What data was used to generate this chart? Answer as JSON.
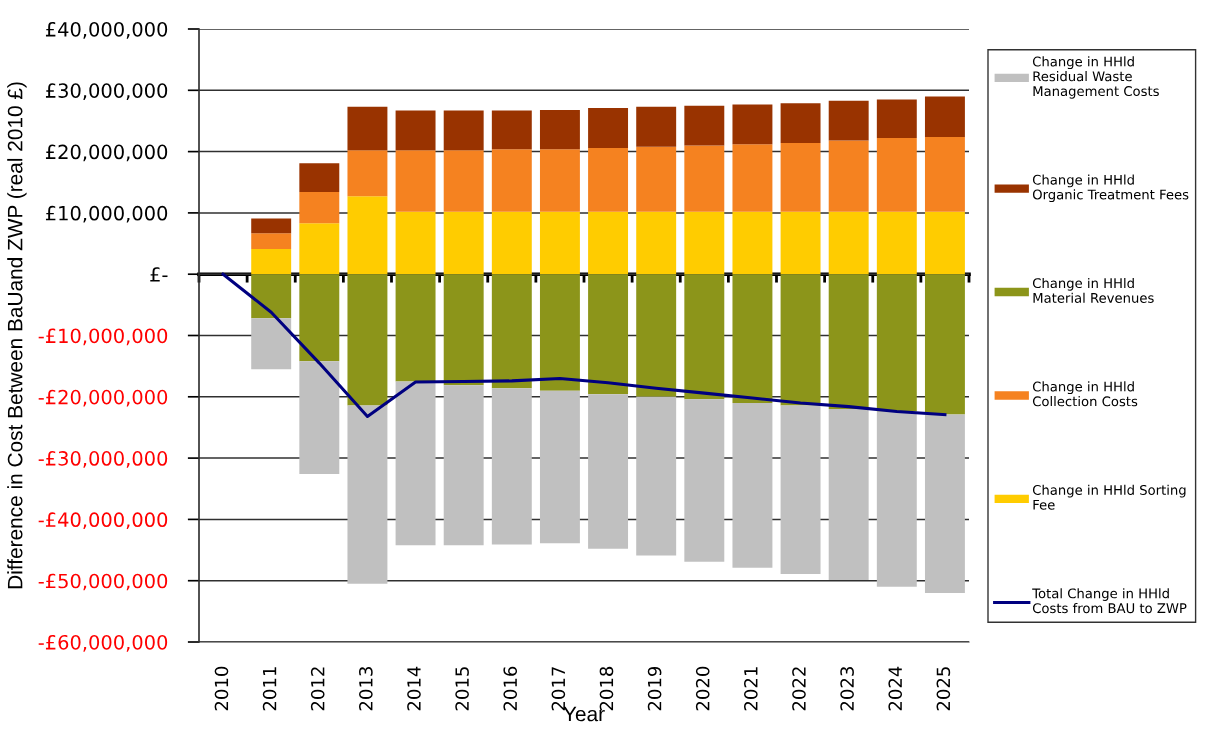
{
  "chart_data": {
    "type": "bar",
    "stacked": true,
    "xlabel": "Year",
    "ylabel": "Difference in Cost Between BaUand ZWP (real 2010 £)",
    "categories": [
      "2010",
      "2011",
      "2012",
      "2013",
      "2014",
      "2015",
      "2016",
      "2017",
      "2018",
      "2019",
      "2020",
      "2021",
      "2022",
      "2023",
      "2024",
      "2025"
    ],
    "series": [
      {
        "name": "Change in HHld Sorting Fee",
        "color": "#ffcc00",
        "values": [
          null,
          4100000,
          8300000,
          12700000,
          10200000,
          10200000,
          10200000,
          10200000,
          10200000,
          10200000,
          10200000,
          10200000,
          10200000,
          10200000,
          10200000,
          10200000
        ]
      },
      {
        "name": "Change in HHld Collection Costs",
        "color": "#f58220",
        "values": [
          null,
          2600000,
          5100000,
          7500000,
          10000000,
          10000000,
          10200000,
          10200000,
          10400000,
          10600000,
          10800000,
          11000000,
          11200000,
          11600000,
          12000000,
          12200000
        ]
      },
      {
        "name": "Change in HHld Material Revenues",
        "color": "#8c951a",
        "values": [
          null,
          -7200000,
          -14200000,
          -21400000,
          -17500000,
          -18100000,
          -18600000,
          -19000000,
          -19600000,
          -20000000,
          -20400000,
          -21000000,
          -21400000,
          -22000000,
          -22400000,
          -22900000
        ]
      },
      {
        "name": "Change in HHld Organic Treatment Fees",
        "color": "#993300",
        "values": [
          null,
          2400000,
          4700000,
          7100000,
          6500000,
          6500000,
          6300000,
          6400000,
          6500000,
          6500000,
          6500000,
          6500000,
          6500000,
          6500000,
          6300000,
          6600000
        ]
      },
      {
        "name": "Change in HHld Residual Waste Management Costs",
        "color": "#c0c0c0",
        "values": [
          null,
          -8300000,
          -18400000,
          -29100000,
          -26700000,
          -26100000,
          -25500000,
          -24900000,
          -25200000,
          -25900000,
          -26500000,
          -26900000,
          -27500000,
          -27900000,
          -28600000,
          -29100000
        ]
      },
      {
        "name": "Total Change in HHld Costs from BAU to ZWP",
        "type": "line",
        "color": "#000080",
        "values": [
          0,
          -6200000,
          -14500000,
          -23200000,
          -17600000,
          -17500000,
          -17400000,
          -17000000,
          -17700000,
          -18600000,
          -19400000,
          -20200000,
          -21000000,
          -21600000,
          -22400000,
          -22900000
        ]
      }
    ],
    "ylim": [
      -60000000,
      40000000
    ],
    "yticks": [
      {
        "value": -60000000,
        "label": "-£60,000,000"
      },
      {
        "value": -50000000,
        "label": "-£50,000,000"
      },
      {
        "value": -40000000,
        "label": "-£40,000,000"
      },
      {
        "value": -30000000,
        "label": "-£30,000,000"
      },
      {
        "value": -20000000,
        "label": "-£20,000,000"
      },
      {
        "value": -10000000,
        "label": "-£10,000,000"
      },
      {
        "value": 0,
        "label": "£-"
      },
      {
        "value": 10000000,
        "label": "£10,000,000"
      },
      {
        "value": 20000000,
        "label": "£20,000,000"
      },
      {
        "value": 30000000,
        "label": "£30,000,000"
      },
      {
        "value": 40000000,
        "label": "£40,000,000"
      }
    ],
    "grid": "y",
    "legend": "right"
  }
}
